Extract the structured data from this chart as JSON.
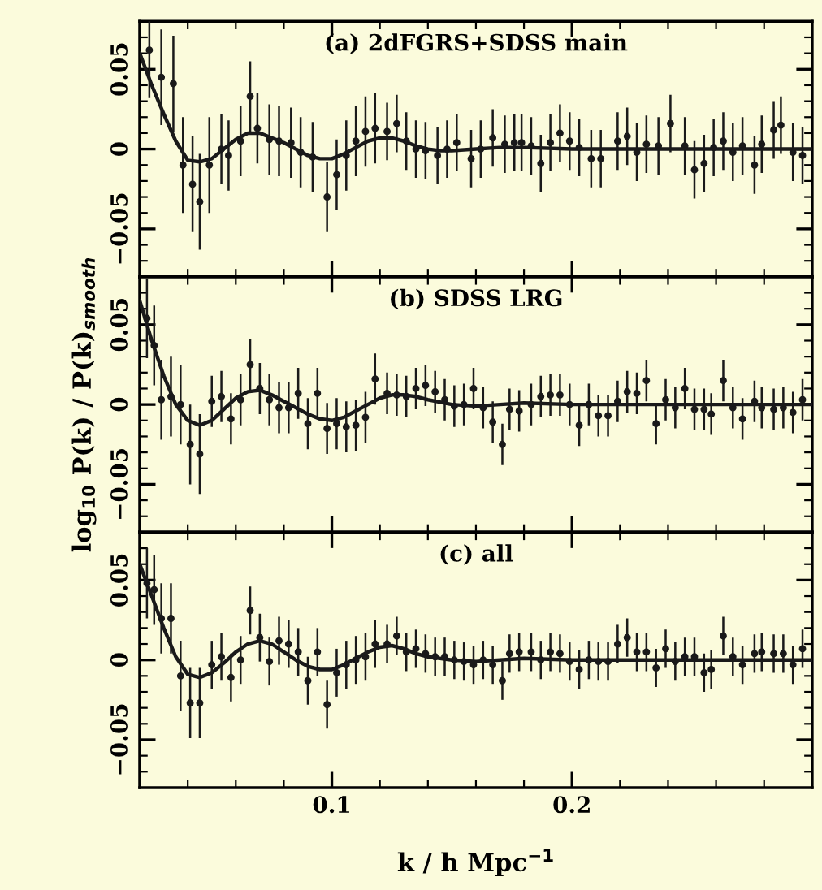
{
  "chart_data": [
    {
      "type": "line",
      "annotations": [
        "(a) 2dFGRS+SDSS main"
      ],
      "xlim": [
        0.02,
        0.3
      ],
      "ylim": [
        -0.08,
        0.08
      ],
      "tick_labels": "y",
      "xticks": [
        {
          "value": 0.04,
          "label": null
        },
        {
          "value": 0.06,
          "label": null
        },
        {
          "value": 0.08,
          "label": null
        },
        {
          "value": 0.1,
          "label": null
        },
        {
          "value": 0.12,
          "label": null
        },
        {
          "value": 0.14,
          "label": null
        },
        {
          "value": 0.16,
          "label": null
        },
        {
          "value": 0.18,
          "label": null
        },
        {
          "value": 0.2,
          "label": null
        },
        {
          "value": 0.22,
          "label": null
        },
        {
          "value": 0.24,
          "label": null
        },
        {
          "value": 0.26,
          "label": null
        },
        {
          "value": 0.28,
          "label": null
        }
      ],
      "yticks": [
        {
          "value": -0.07,
          "label": null
        },
        {
          "value": -0.06,
          "label": null
        },
        {
          "value": -0.05,
          "label": "−0.05"
        },
        {
          "value": -0.04,
          "label": null
        },
        {
          "value": -0.03,
          "label": null
        },
        {
          "value": -0.02,
          "label": null
        },
        {
          "value": -0.01,
          "label": null
        },
        0,
        {
          "value": 0.01,
          "label": null
        },
        {
          "value": 0.02,
          "label": null
        },
        {
          "value": 0.03,
          "label": null
        },
        {
          "value": 0.04,
          "label": null
        },
        0.05,
        {
          "value": 0.06,
          "label": null
        },
        {
          "value": 0.07,
          "label": null
        }
      ],
      "series": [
        {
          "type": "scatter",
          "marker": "circle",
          "color": "#1a1a1a",
          "x": [
            0.024,
            0.029,
            0.034,
            0.038,
            0.042,
            0.045,
            0.049,
            0.054,
            0.057,
            0.062,
            0.066,
            0.069,
            0.074,
            0.078,
            0.083,
            0.087,
            0.092,
            0.098,
            0.102,
            0.106,
            0.11,
            0.114,
            0.118,
            0.123,
            0.127,
            0.131,
            0.135,
            0.139,
            0.144,
            0.148,
            0.152,
            0.158,
            0.162,
            0.167,
            0.172,
            0.176,
            0.179,
            0.183,
            0.187,
            0.191,
            0.195,
            0.199,
            0.203,
            0.208,
            0.212,
            0.219,
            0.223,
            0.227,
            0.231,
            0.236,
            0.241,
            0.247,
            0.251,
            0.255,
            0.259,
            0.263,
            0.267,
            0.271,
            0.276,
            0.279,
            0.284,
            0.287,
            0.292,
            0.296
          ],
          "values": [
            0.062,
            0.045,
            0.041,
            -0.01,
            -0.022,
            -0.033,
            -0.01,
            0.0,
            -0.004,
            0.005,
            0.033,
            0.013,
            0.006,
            0.005,
            0.004,
            -0.002,
            -0.005,
            -0.03,
            -0.016,
            -0.004,
            0.005,
            0.011,
            0.013,
            0.011,
            0.016,
            0.005,
            0.0,
            -0.001,
            -0.004,
            0.0,
            0.004,
            -0.006,
            0.0,
            0.007,
            0.003,
            0.004,
            0.004,
            0.002,
            -0.009,
            0.004,
            0.01,
            0.005,
            0.001,
            -0.006,
            -0.006,
            0.005,
            0.008,
            -0.002,
            0.003,
            0.002,
            0.016,
            0.002,
            -0.013,
            -0.009,
            0.001,
            0.005,
            -0.002,
            0.002,
            -0.01,
            0.003,
            0.012,
            0.015,
            -0.002,
            -0.004
          ],
          "errors": [
            0.03,
            0.03,
            0.03,
            0.03,
            0.03,
            0.03,
            0.03,
            0.022,
            0.022,
            0.022,
            0.022,
            0.022,
            0.022,
            0.022,
            0.022,
            0.022,
            0.022,
            0.022,
            0.022,
            0.022,
            0.022,
            0.022,
            0.022,
            0.018,
            0.018,
            0.018,
            0.018,
            0.018,
            0.018,
            0.018,
            0.018,
            0.018,
            0.018,
            0.018,
            0.018,
            0.018,
            0.018,
            0.018,
            0.018,
            0.018,
            0.018,
            0.018,
            0.018,
            0.018,
            0.018,
            0.018,
            0.018,
            0.018,
            0.018,
            0.018,
            0.018,
            0.018,
            0.018,
            0.018,
            0.018,
            0.018,
            0.018,
            0.018,
            0.018,
            0.018,
            0.018,
            0.018,
            0.018,
            0.018
          ]
        },
        {
          "type": "line",
          "color": "#1a1a1a",
          "x": [
            0.02,
            0.025,
            0.03,
            0.035,
            0.04,
            0.045,
            0.05,
            0.055,
            0.06,
            0.065,
            0.07,
            0.075,
            0.08,
            0.085,
            0.09,
            0.095,
            0.1,
            0.105,
            0.11,
            0.115,
            0.12,
            0.125,
            0.13,
            0.135,
            0.14,
            0.145,
            0.15,
            0.16,
            0.17,
            0.18,
            0.2,
            0.25,
            0.3
          ],
          "values": [
            0.06,
            0.04,
            0.022,
            0.005,
            -0.007,
            -0.008,
            -0.006,
            0.0,
            0.006,
            0.01,
            0.01,
            0.007,
            0.004,
            0.0,
            -0.004,
            -0.006,
            -0.006,
            -0.003,
            0.001,
            0.005,
            0.007,
            0.007,
            0.005,
            0.002,
            0.0,
            -0.001,
            -0.001,
            0.0,
            0.001,
            0.001,
            0.0,
            0.0,
            0.0
          ]
        }
      ]
    },
    {
      "type": "line",
      "annotations": [
        "(b) SDSS LRG"
      ],
      "ylabel": "log$_{10}$ P(k) / P(k)$_{smooth}$",
      "xlim": [
        0.02,
        0.3
      ],
      "ylim": [
        -0.08,
        0.08
      ],
      "tick_labels": "y",
      "xticks": [
        {
          "value": 0.04,
          "label": null
        },
        {
          "value": 0.06,
          "label": null
        },
        {
          "value": 0.08,
          "label": null
        },
        {
          "value": 0.1,
          "label": null
        },
        {
          "value": 0.12,
          "label": null
        },
        {
          "value": 0.14,
          "label": null
        },
        {
          "value": 0.16,
          "label": null
        },
        {
          "value": 0.18,
          "label": null
        },
        {
          "value": 0.2,
          "label": null
        },
        {
          "value": 0.22,
          "label": null
        },
        {
          "value": 0.24,
          "label": null
        },
        {
          "value": 0.26,
          "label": null
        },
        {
          "value": 0.28,
          "label": null
        }
      ],
      "yticks": [
        {
          "value": -0.07,
          "label": null
        },
        {
          "value": -0.06,
          "label": null
        },
        {
          "value": -0.05,
          "label": "−0.05"
        },
        {
          "value": -0.04,
          "label": null
        },
        {
          "value": -0.03,
          "label": null
        },
        {
          "value": -0.02,
          "label": null
        },
        {
          "value": -0.01,
          "label": null
        },
        0,
        {
          "value": 0.01,
          "label": null
        },
        {
          "value": 0.02,
          "label": null
        },
        {
          "value": 0.03,
          "label": null
        },
        {
          "value": 0.04,
          "label": null
        },
        0.05,
        {
          "value": 0.06,
          "label": null
        },
        {
          "value": 0.07,
          "label": null
        }
      ],
      "series": [
        {
          "type": "scatter",
          "marker": "circle",
          "color": "#1a1a1a",
          "x": [
            0.023,
            0.026,
            0.029,
            0.033,
            0.037,
            0.041,
            0.045,
            0.05,
            0.054,
            0.058,
            0.062,
            0.066,
            0.07,
            0.074,
            0.078,
            0.082,
            0.086,
            0.09,
            0.094,
            0.098,
            0.102,
            0.106,
            0.11,
            0.114,
            0.118,
            0.123,
            0.127,
            0.131,
            0.135,
            0.139,
            0.143,
            0.147,
            0.151,
            0.155,
            0.159,
            0.163,
            0.167,
            0.171,
            0.174,
            0.178,
            0.183,
            0.187,
            0.191,
            0.195,
            0.199,
            0.203,
            0.207,
            0.211,
            0.215,
            0.219,
            0.223,
            0.227,
            0.231,
            0.235,
            0.239,
            0.243,
            0.247,
            0.251,
            0.255,
            0.258,
            0.263,
            0.267,
            0.271,
            0.276,
            0.279,
            0.284,
            0.288,
            0.292,
            0.296
          ],
          "values": [
            0.054,
            0.037,
            0.003,
            0.005,
            0.0,
            -0.025,
            -0.031,
            0.002,
            0.005,
            -0.009,
            0.003,
            0.025,
            0.01,
            0.003,
            -0.002,
            -0.002,
            0.007,
            -0.012,
            0.007,
            -0.015,
            -0.012,
            -0.014,
            -0.013,
            -0.008,
            0.016,
            0.007,
            0.006,
            0.005,
            0.01,
            0.012,
            0.008,
            0.003,
            -0.001,
            0.0,
            0.01,
            -0.002,
            -0.011,
            -0.025,
            -0.003,
            -0.004,
            0.0,
            0.005,
            0.006,
            0.006,
            0.0,
            -0.013,
            0.0,
            -0.007,
            -0.007,
            0.002,
            0.008,
            0.007,
            0.015,
            -0.012,
            0.003,
            -0.002,
            0.01,
            -0.003,
            -0.003,
            -0.006,
            0.015,
            -0.002,
            -0.009,
            0.002,
            -0.002,
            -0.003,
            -0.002,
            -0.005,
            0.003
          ],
          "errors": [
            0.025,
            0.025,
            0.025,
            0.025,
            0.025,
            0.025,
            0.025,
            0.016,
            0.016,
            0.016,
            0.016,
            0.016,
            0.016,
            0.016,
            0.016,
            0.016,
            0.016,
            0.016,
            0.016,
            0.016,
            0.016,
            0.016,
            0.016,
            0.016,
            0.016,
            0.013,
            0.013,
            0.013,
            0.013,
            0.013,
            0.013,
            0.013,
            0.013,
            0.013,
            0.013,
            0.013,
            0.013,
            0.013,
            0.013,
            0.013,
            0.013,
            0.013,
            0.013,
            0.013,
            0.013,
            0.013,
            0.013,
            0.013,
            0.013,
            0.013,
            0.013,
            0.013,
            0.013,
            0.013,
            0.013,
            0.013,
            0.013,
            0.013,
            0.013,
            0.013,
            0.013,
            0.013,
            0.013,
            0.013,
            0.013,
            0.013,
            0.013,
            0.013,
            0.013
          ]
        },
        {
          "type": "line",
          "color": "#1a1a1a",
          "x": [
            0.02,
            0.025,
            0.03,
            0.035,
            0.04,
            0.045,
            0.05,
            0.055,
            0.06,
            0.065,
            0.07,
            0.075,
            0.08,
            0.085,
            0.09,
            0.095,
            0.1,
            0.105,
            0.11,
            0.115,
            0.12,
            0.125,
            0.13,
            0.135,
            0.14,
            0.15,
            0.16,
            0.17,
            0.18,
            0.2,
            0.25,
            0.3
          ],
          "values": [
            0.065,
            0.04,
            0.018,
            0.0,
            -0.01,
            -0.013,
            -0.01,
            -0.003,
            0.004,
            0.008,
            0.009,
            0.006,
            0.002,
            -0.002,
            -0.006,
            -0.009,
            -0.01,
            -0.008,
            -0.004,
            0.0,
            0.004,
            0.006,
            0.006,
            0.005,
            0.003,
            0.0,
            -0.001,
            0.0,
            0.001,
            0.0,
            0.0,
            0.0
          ]
        }
      ]
    },
    {
      "type": "line",
      "annotations": [
        "(c) all"
      ],
      "xlabel": "k / h Mpc$^{−1}$",
      "xlim": [
        0.02,
        0.3
      ],
      "ylim": [
        -0.08,
        0.08
      ],
      "xticks": [
        {
          "value": 0.04,
          "label": null
        },
        {
          "value": 0.06,
          "label": null
        },
        {
          "value": 0.08,
          "label": null
        },
        0.1,
        {
          "value": 0.12,
          "label": null
        },
        {
          "value": 0.14,
          "label": null
        },
        {
          "value": 0.16,
          "label": null
        },
        {
          "value": 0.18,
          "label": null
        },
        0.2,
        {
          "value": 0.22,
          "label": null
        },
        {
          "value": 0.24,
          "label": null
        },
        {
          "value": 0.26,
          "label": null
        },
        {
          "value": 0.28,
          "label": null
        }
      ],
      "yticks": [
        {
          "value": -0.07,
          "label": null
        },
        {
          "value": -0.06,
          "label": null
        },
        {
          "value": -0.05,
          "label": "−0.05"
        },
        {
          "value": -0.04,
          "label": null
        },
        {
          "value": -0.03,
          "label": null
        },
        {
          "value": -0.02,
          "label": null
        },
        {
          "value": -0.01,
          "label": null
        },
        0,
        {
          "value": 0.01,
          "label": null
        },
        {
          "value": 0.02,
          "label": null
        },
        {
          "value": 0.03,
          "label": null
        },
        {
          "value": 0.04,
          "label": null
        },
        0.05,
        {
          "value": 0.06,
          "label": null
        },
        {
          "value": 0.07,
          "label": null
        }
      ],
      "series": [
        {
          "type": "scatter",
          "marker": "circle",
          "color": "#1a1a1a",
          "x": [
            0.023,
            0.026,
            0.029,
            0.033,
            0.037,
            0.041,
            0.045,
            0.05,
            0.054,
            0.058,
            0.062,
            0.066,
            0.07,
            0.074,
            0.078,
            0.082,
            0.086,
            0.09,
            0.094,
            0.098,
            0.102,
            0.106,
            0.11,
            0.114,
            0.118,
            0.123,
            0.127,
            0.131,
            0.135,
            0.139,
            0.143,
            0.147,
            0.151,
            0.155,
            0.159,
            0.163,
            0.167,
            0.171,
            0.174,
            0.178,
            0.183,
            0.187,
            0.191,
            0.195,
            0.199,
            0.203,
            0.207,
            0.211,
            0.215,
            0.219,
            0.223,
            0.227,
            0.231,
            0.235,
            0.239,
            0.243,
            0.247,
            0.251,
            0.255,
            0.258,
            0.263,
            0.267,
            0.271,
            0.276,
            0.279,
            0.284,
            0.288,
            0.292,
            0.296
          ],
          "values": [
            0.048,
            0.044,
            0.026,
            0.026,
            -0.01,
            -0.027,
            -0.027,
            -0.003,
            0.002,
            -0.011,
            0.0,
            0.031,
            0.014,
            -0.001,
            0.012,
            0.01,
            0.005,
            -0.013,
            0.005,
            -0.028,
            -0.008,
            -0.003,
            0.0,
            0.002,
            0.01,
            0.01,
            0.015,
            0.005,
            0.007,
            0.004,
            0.002,
            0.002,
            0.0,
            -0.001,
            -0.003,
            0.0,
            -0.003,
            -0.013,
            0.004,
            0.005,
            0.005,
            0.0,
            0.005,
            0.004,
            -0.001,
            -0.006,
            0.0,
            -0.001,
            -0.001,
            0.01,
            0.014,
            0.005,
            0.005,
            -0.005,
            0.007,
            -0.001,
            0.002,
            0.002,
            -0.008,
            -0.006,
            0.015,
            0.002,
            -0.003,
            0.004,
            0.005,
            0.004,
            0.004,
            -0.003,
            0.007
          ],
          "errors": [
            0.022,
            0.022,
            0.022,
            0.022,
            0.022,
            0.022,
            0.022,
            0.015,
            0.015,
            0.015,
            0.015,
            0.015,
            0.015,
            0.015,
            0.015,
            0.015,
            0.015,
            0.015,
            0.015,
            0.015,
            0.015,
            0.015,
            0.015,
            0.015,
            0.015,
            0.012,
            0.012,
            0.012,
            0.012,
            0.012,
            0.012,
            0.012,
            0.012,
            0.012,
            0.012,
            0.012,
            0.012,
            0.012,
            0.012,
            0.012,
            0.012,
            0.012,
            0.012,
            0.012,
            0.012,
            0.012,
            0.012,
            0.012,
            0.012,
            0.012,
            0.012,
            0.012,
            0.012,
            0.012,
            0.012,
            0.012,
            0.012,
            0.012,
            0.012,
            0.012,
            0.012,
            0.012,
            0.012,
            0.012,
            0.012,
            0.012,
            0.012,
            0.012,
            0.012
          ]
        },
        {
          "type": "line",
          "color": "#1a1a1a",
          "x": [
            0.02,
            0.025,
            0.03,
            0.035,
            0.04,
            0.045,
            0.05,
            0.055,
            0.06,
            0.065,
            0.07,
            0.075,
            0.08,
            0.085,
            0.09,
            0.095,
            0.1,
            0.105,
            0.11,
            0.115,
            0.12,
            0.125,
            0.13,
            0.135,
            0.14,
            0.15,
            0.16,
            0.17,
            0.18,
            0.2,
            0.25,
            0.3
          ],
          "values": [
            0.06,
            0.04,
            0.02,
            0.002,
            -0.009,
            -0.011,
            -0.008,
            -0.002,
            0.005,
            0.01,
            0.012,
            0.01,
            0.005,
            0.0,
            -0.004,
            -0.006,
            -0.006,
            -0.003,
            0.001,
            0.005,
            0.008,
            0.009,
            0.007,
            0.004,
            0.002,
            0.0,
            -0.001,
            0.0,
            0.001,
            0.0,
            0.0,
            0.0
          ]
        }
      ]
    }
  ]
}
